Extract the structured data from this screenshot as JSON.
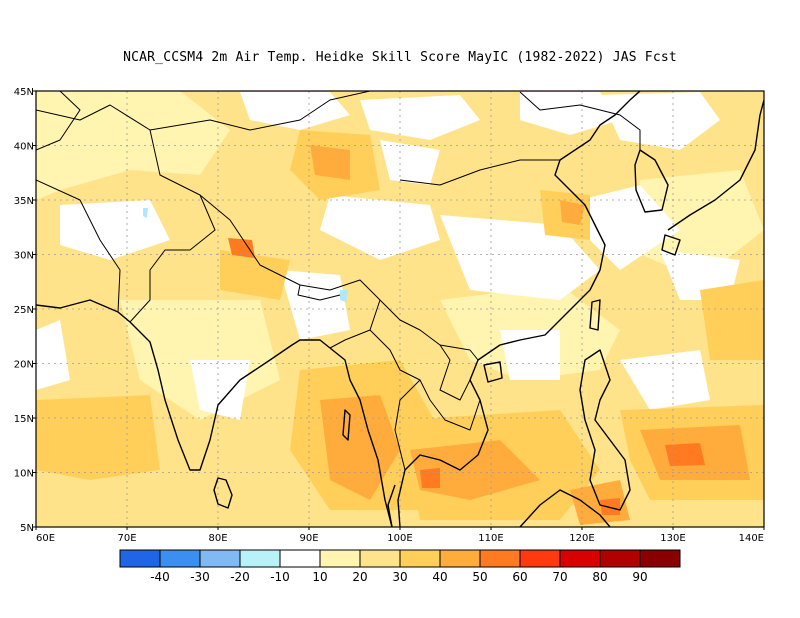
{
  "title": "NCAR_CCSM4  2m Air Temp. Heidke Skill Score MayIC (1982-2022) JAS Fcst",
  "map": {
    "lat_range": [
      5,
      45
    ],
    "lon_range": [
      60,
      140
    ],
    "lat_ticks": [
      {
        "value": 45,
        "label": "45N"
      },
      {
        "value": 40,
        "label": "40N"
      },
      {
        "value": 35,
        "label": "35N"
      },
      {
        "value": 30,
        "label": "30N"
      },
      {
        "value": 25,
        "label": "25N"
      },
      {
        "value": 20,
        "label": "20N"
      },
      {
        "value": 15,
        "label": "15N"
      },
      {
        "value": 10,
        "label": "10N"
      },
      {
        "value": 5,
        "label": "5N"
      }
    ],
    "lon_ticks": [
      {
        "value": 60,
        "label": "60E"
      },
      {
        "value": 70,
        "label": "70E"
      },
      {
        "value": 80,
        "label": "80E"
      },
      {
        "value": 90,
        "label": "90E"
      },
      {
        "value": 100,
        "label": "100E"
      },
      {
        "value": 110,
        "label": "110E"
      },
      {
        "value": 120,
        "label": "120E"
      },
      {
        "value": 130,
        "label": "130E"
      },
      {
        "value": 140,
        "label": "140E"
      }
    ],
    "grid": true,
    "field_colors": {
      "white": "#ffffff",
      "pale_yellow": "#fff5b0",
      "light_yellow": "#ffe38a",
      "yellow_orange": "#ffcf5a",
      "orange": "#ffac3c",
      "deep_orange": "#ff7a20",
      "lake": "#aee8ff"
    }
  },
  "colorbar": {
    "colors": [
      "#1f66e6",
      "#3a8ff0",
      "#7fbaf5",
      "#b8f2f8",
      "#ffffff",
      "#fff5b0",
      "#ffe38a",
      "#ffcf5a",
      "#ffac3c",
      "#ff7a20",
      "#ff3a0e",
      "#d80000",
      "#b00000",
      "#8a0000"
    ],
    "labels": [
      "-40",
      "-30",
      "-20",
      "-10",
      "10",
      "20",
      "30",
      "40",
      "50",
      "60",
      "70",
      "80",
      "90"
    ]
  }
}
